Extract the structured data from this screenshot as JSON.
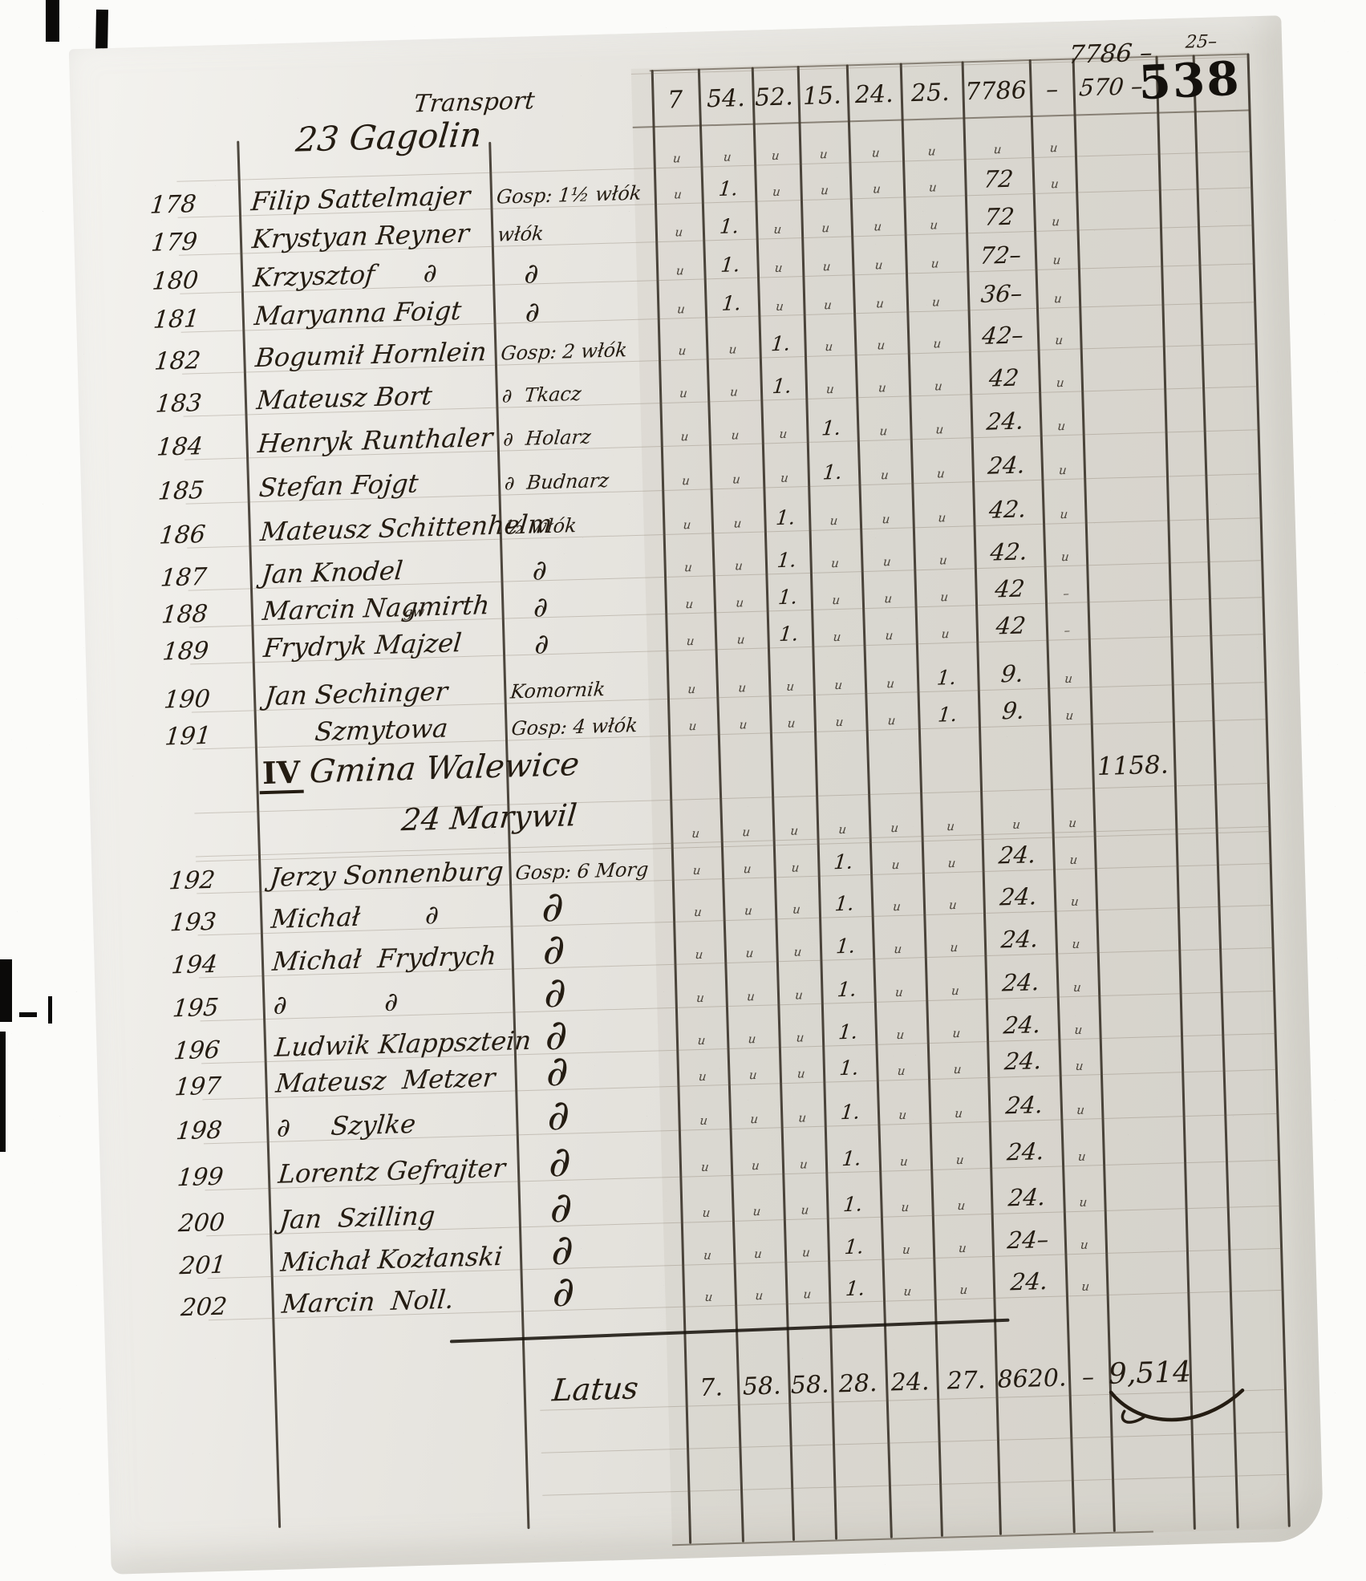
{
  "document": {
    "folio_stamp": "538",
    "corner_note": "25–",
    "ditto_mark": "u",
    "tick_mark": "1.",
    "header": {
      "transport_label": "Transport",
      "cols": [
        "7",
        "54.",
        "52.",
        "15.",
        "24.",
        "25.",
        "7786"
      ],
      "dash": "–",
      "carry_total": "7786 –",
      "carry_sub": "570 –"
    },
    "section1": {
      "title": "23 Gagolin"
    },
    "section2": {
      "prefix": "IV",
      "title": "Gmina Walewice",
      "subtitle": "24 Marywil",
      "carry_value": "1158."
    },
    "latus": {
      "label": "Latus",
      "totals": [
        "7.",
        "58.",
        "58.",
        "28.",
        "24.",
        "27.",
        "8620."
      ],
      "dash": "–",
      "grand_total": "9,514"
    },
    "rows": [
      {
        "no": "178",
        "name": "Filip Sattelmajer",
        "occupation": "Gosp: 1½ włók",
        "tick_col": "c54",
        "amount": "72"
      },
      {
        "no": "179",
        "name": "Krystyan Reyner",
        "occupation": "włók",
        "tick_col": "c54",
        "amount": "72"
      },
      {
        "no": "180",
        "name": "Krzysztof      ∂",
        "occupation": "∂",
        "tick_col": "c54",
        "amount": "72–"
      },
      {
        "no": "181",
        "name": "Maryanna Foigt",
        "occupation": "∂",
        "tick_col": "c54",
        "amount": "36–"
      },
      {
        "no": "182",
        "name": "Bogumił Hornlein",
        "occupation": "Gosp: 2 włók",
        "tick_col": "c52",
        "amount": "42–"
      },
      {
        "no": "183",
        "name": "Mateusz Bort",
        "occupation": "∂  Tkacz",
        "tick_col": "c52",
        "amount": "42"
      },
      {
        "no": "184",
        "name": "Henryk Runthaler",
        "occupation": "∂  Holarz",
        "tick_col": "c15",
        "amount": "24."
      },
      {
        "no": "185",
        "name": "Stefan Fojgt",
        "occupation": "∂  Budnarz",
        "tick_col": "c15",
        "amount": "24."
      },
      {
        "no": "186",
        "name": "Mateusz Schittenhelm",
        "occupation": "½ włók",
        "tick_col": "c52",
        "amount": "42."
      },
      {
        "no": "187",
        "name": "Jan Knodel",
        "occupation": "∂",
        "tick_col": "c52",
        "amount": "42."
      },
      {
        "no": "188",
        "name": "Marcin Nagmirth",
        "occupation": "∂",
        "tick_col": "c52",
        "amount": "42",
        "dash": "–"
      },
      {
        "no": "189",
        "name": "Frydryk Majzel",
        "note": "gw",
        "occupation": "∂",
        "tick_col": "c52",
        "amount": "42",
        "dash": "–"
      },
      {
        "no": "190",
        "name": "Jan Sechinger",
        "occupation": "Komornik",
        "tick_col": "c25",
        "amount": "9."
      },
      {
        "no": "191",
        "name": "      Szmytowa",
        "occupation": "Gosp: 4 włók",
        "tick_col": "c25",
        "amount": "9."
      },
      {
        "no": "192",
        "name": "Jerzy Sonnenburg",
        "occupation": "Gosp: 6 Morg",
        "tick_col": "c15",
        "amount": "24."
      },
      {
        "no": "193",
        "name": "Michał        ∂",
        "occupation": "∂",
        "tick_col": "c15",
        "amount": "24."
      },
      {
        "no": "194",
        "name": "Michał  Frydrych",
        "occupation": "∂",
        "tick_col": "c15",
        "amount": "24."
      },
      {
        "no": "195",
        "name": "∂            ∂",
        "occupation": "∂",
        "tick_col": "c15",
        "amount": "24."
      },
      {
        "no": "196",
        "name": "Ludwik Klappsztein",
        "occupation": "∂",
        "tick_col": "c15",
        "amount": "24."
      },
      {
        "no": "197",
        "name": "Mateusz  Metzer",
        "occupation": "∂",
        "tick_col": "c15",
        "amount": "24."
      },
      {
        "no": "198",
        "name": "∂     Szylke",
        "occupation": "∂",
        "tick_col": "c15",
        "amount": "24."
      },
      {
        "no": "199",
        "name": "Lorentz Gefrajter",
        "occupation": "∂",
        "tick_col": "c15",
        "amount": "24."
      },
      {
        "no": "200",
        "name": "Jan  Szilling",
        "occupation": "∂",
        "tick_col": "c15",
        "amount": "24."
      },
      {
        "no": "201",
        "name": "Michał Kozłanski",
        "occupation": "∂",
        "tick_col": "c15",
        "amount": "24–"
      },
      {
        "no": "202",
        "name": "Marcin  Noll.",
        "occupation": "∂",
        "tick_col": "c15",
        "amount": "24."
      }
    ]
  }
}
